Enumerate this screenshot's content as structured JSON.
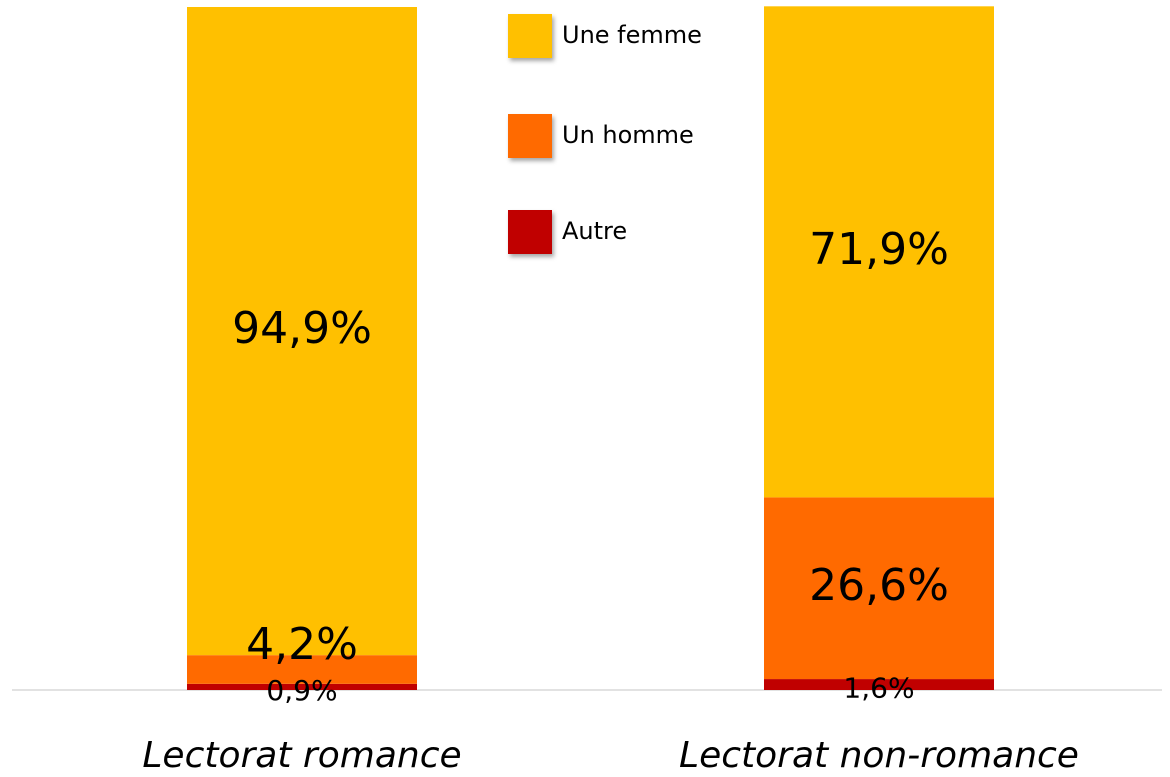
{
  "chart_data": {
    "type": "bar",
    "stacked": true,
    "categories": [
      "Lectorat romance",
      "Lectorat non-romance"
    ],
    "series": [
      {
        "name": "Autre",
        "color": "#c00000",
        "values": [
          0.9,
          1.6
        ],
        "value_labels": [
          "0,9%",
          "1,6%"
        ]
      },
      {
        "name": "Un homme",
        "color": "#ff6a00",
        "values": [
          4.2,
          26.6
        ],
        "value_labels": [
          "4,2%",
          "26,6%"
        ]
      },
      {
        "name": "Une femme",
        "color": "#ffc000",
        "values": [
          94.9,
          71.9
        ],
        "value_labels": [
          "94,9%",
          "71,9%"
        ]
      }
    ],
    "ylim": [
      0,
      100
    ]
  }
}
